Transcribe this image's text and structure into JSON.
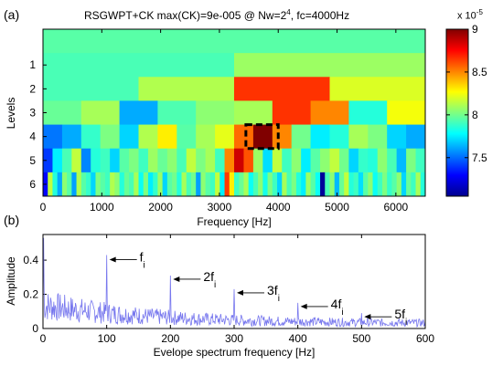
{
  "panel_a_label": "(a)",
  "panel_b_label": "(b)",
  "chart_data": [
    {
      "type": "heatmap",
      "title": "RSGWPT+CK   max(CK)=9e-005 @ Nw=2",
      "title_sup": "4",
      "title_tail": ", fc=4000Hz",
      "xlabel": "Frequency [Hz]",
      "ylabel": "Levels",
      "xlim": [
        0,
        6500
      ],
      "xticks": [
        "0",
        "1000",
        "2000",
        "3000",
        "4000",
        "5000",
        "6000"
      ],
      "yticks": [
        "1",
        "2",
        "3",
        "4",
        "5",
        "6"
      ],
      "colorbar": {
        "multiplier": "x 10",
        "multiplier_exp": "-5",
        "ticks": [
          "7.5",
          "8",
          "8.5",
          "9"
        ],
        "range": [
          7.05,
          9.0
        ],
        "colormap": "jet"
      },
      "highlight": {
        "level": 4,
        "freq_range": [
          3450,
          4000
        ]
      },
      "rows": [
        {
          "level": "0",
          "values": [
            7.95
          ]
        },
        {
          "level": "1",
          "values": [
            7.92,
            8.08
          ]
        },
        {
          "level": "2",
          "values": [
            7.92,
            8.12,
            8.66,
            8.2
          ]
        },
        {
          "level": "3",
          "values": [
            7.98,
            8.1,
            7.62,
            7.93,
            8.05,
            8.1,
            8.66,
            8.5,
            7.85,
            8.25
          ]
        },
        {
          "level": "4",
          "values": [
            7.52,
            7.62,
            7.88,
            8.02,
            7.7,
            8.12,
            8.3,
            7.95,
            8.1,
            8.22,
            8.55,
            9.0,
            8.5,
            8.0,
            7.75,
            7.85,
            8.1,
            8.02,
            7.7,
            7.62
          ]
        },
        {
          "level": "5",
          "values": [
            7.4,
            7.75,
            7.92,
            8.15,
            7.55,
            7.85,
            7.9,
            7.7,
            7.95,
            8.02,
            7.9,
            8.08,
            7.98,
            8.05,
            7.92,
            8.15,
            8.02,
            8.1,
            7.9,
            8.5,
            8.85,
            8.6,
            8.08,
            7.72,
            8.15,
            7.9,
            8.05,
            7.75,
            7.95,
            8.05,
            8.15,
            8.0,
            7.7,
            7.88,
            7.85,
            8.05,
            7.92,
            7.65,
            8.02,
            7.9
          ]
        },
        {
          "level": "6",
          "values": [
            7.3,
            8.15,
            7.85,
            7.62,
            8.05,
            7.95,
            7.6,
            8.12,
            7.95,
            7.88,
            7.7,
            8.02,
            7.95,
            7.9,
            8.12,
            8.05,
            7.85,
            7.98,
            7.92,
            8.1,
            7.8,
            8.02,
            7.75,
            7.88,
            8.08,
            7.7,
            7.95,
            8.0,
            7.85,
            8.1,
            7.92,
            8.0,
            7.6,
            8.05,
            7.95,
            7.9,
            8.15,
            7.75,
            8.65,
            8.3,
            7.9,
            7.98,
            8.1,
            7.8,
            7.92,
            8.05,
            7.82,
            8.02,
            7.9,
            7.7,
            8.1,
            7.92,
            8.02,
            7.85,
            7.75,
            8.08,
            7.95,
            7.8,
            7.1,
            7.92,
            8.05,
            7.65,
            7.98,
            8.15,
            7.85,
            7.9,
            7.72,
            7.95,
            8.05,
            7.8,
            7.9,
            8.02,
            7.88,
            7.95,
            8.05,
            7.7,
            7.98,
            7.9,
            8.1,
            7.85
          ]
        }
      ]
    },
    {
      "type": "line",
      "xlabel": "Evelope spectrum frequency [Hz]",
      "ylabel": "Amplitude",
      "xlim": [
        0,
        600
      ],
      "ylim": [
        0,
        0.55
      ],
      "xticks": [
        "0",
        "100",
        "200",
        "300",
        "400",
        "500",
        "600"
      ],
      "yticks": [
        "0",
        "0.2",
        "0.4"
      ],
      "line_color": "#7777ee",
      "peaks": [
        {
          "x": 1,
          "y": 0.53
        },
        {
          "x": 100,
          "y": 0.43
        },
        {
          "x": 200,
          "y": 0.31
        },
        {
          "x": 300,
          "y": 0.23
        },
        {
          "x": 400,
          "y": 0.15
        },
        {
          "x": 500,
          "y": 0.09
        }
      ],
      "annotations": [
        {
          "text": "f",
          "sub": "i",
          "x": 100,
          "y": 0.43
        },
        {
          "text": "2f",
          "sub": "i",
          "x": 200,
          "y": 0.31
        },
        {
          "text": "3f",
          "sub": "i",
          "x": 300,
          "y": 0.23
        },
        {
          "text": "4f",
          "sub": "i",
          "x": 400,
          "y": 0.15
        },
        {
          "text": "5f",
          "sub": "i",
          "x": 500,
          "y": 0.09
        }
      ]
    }
  ]
}
